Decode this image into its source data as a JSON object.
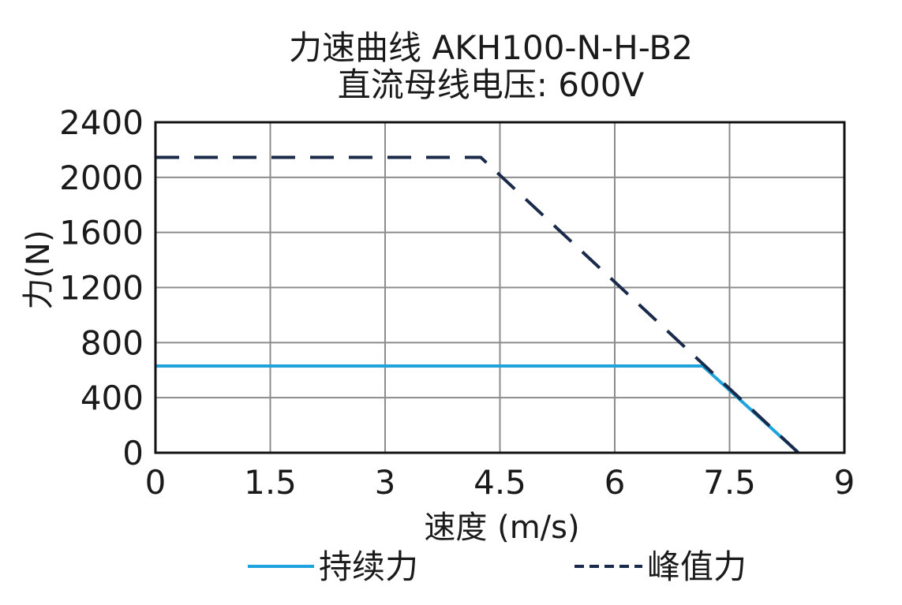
{
  "chart_data": {
    "type": "line",
    "title": "力速曲线 AKH100-N-H-B2",
    "subtitle": "直流母线电压: 600V",
    "xlabel": "速度 (m/s)",
    "ylabel": "力(N)",
    "xlim": [
      0,
      9
    ],
    "ylim": [
      0,
      2400
    ],
    "xticks": [
      "0",
      "1.5",
      "3",
      "4.5",
      "6",
      "7.5",
      "9"
    ],
    "xtick_values": [
      0,
      1.5,
      3,
      4.5,
      6,
      7.5,
      9
    ],
    "yticks": [
      "0",
      "400",
      "800",
      "1200",
      "1600",
      "2000",
      "2400"
    ],
    "ytick_values": [
      0,
      400,
      800,
      1200,
      1600,
      2000,
      2400
    ],
    "grid": true,
    "legend_position": "bottom",
    "series": [
      {
        "name": "持续力",
        "style": "solid",
        "color": "#1ea3dc",
        "x": [
          0,
          7.15,
          8.4
        ],
        "y": [
          630,
          630,
          0
        ]
      },
      {
        "name": "峰值力",
        "style": "dashed",
        "color": "#1a2a4a",
        "x": [
          0,
          4.25,
          8.4
        ],
        "y": [
          2145,
          2145,
          0
        ]
      }
    ]
  }
}
